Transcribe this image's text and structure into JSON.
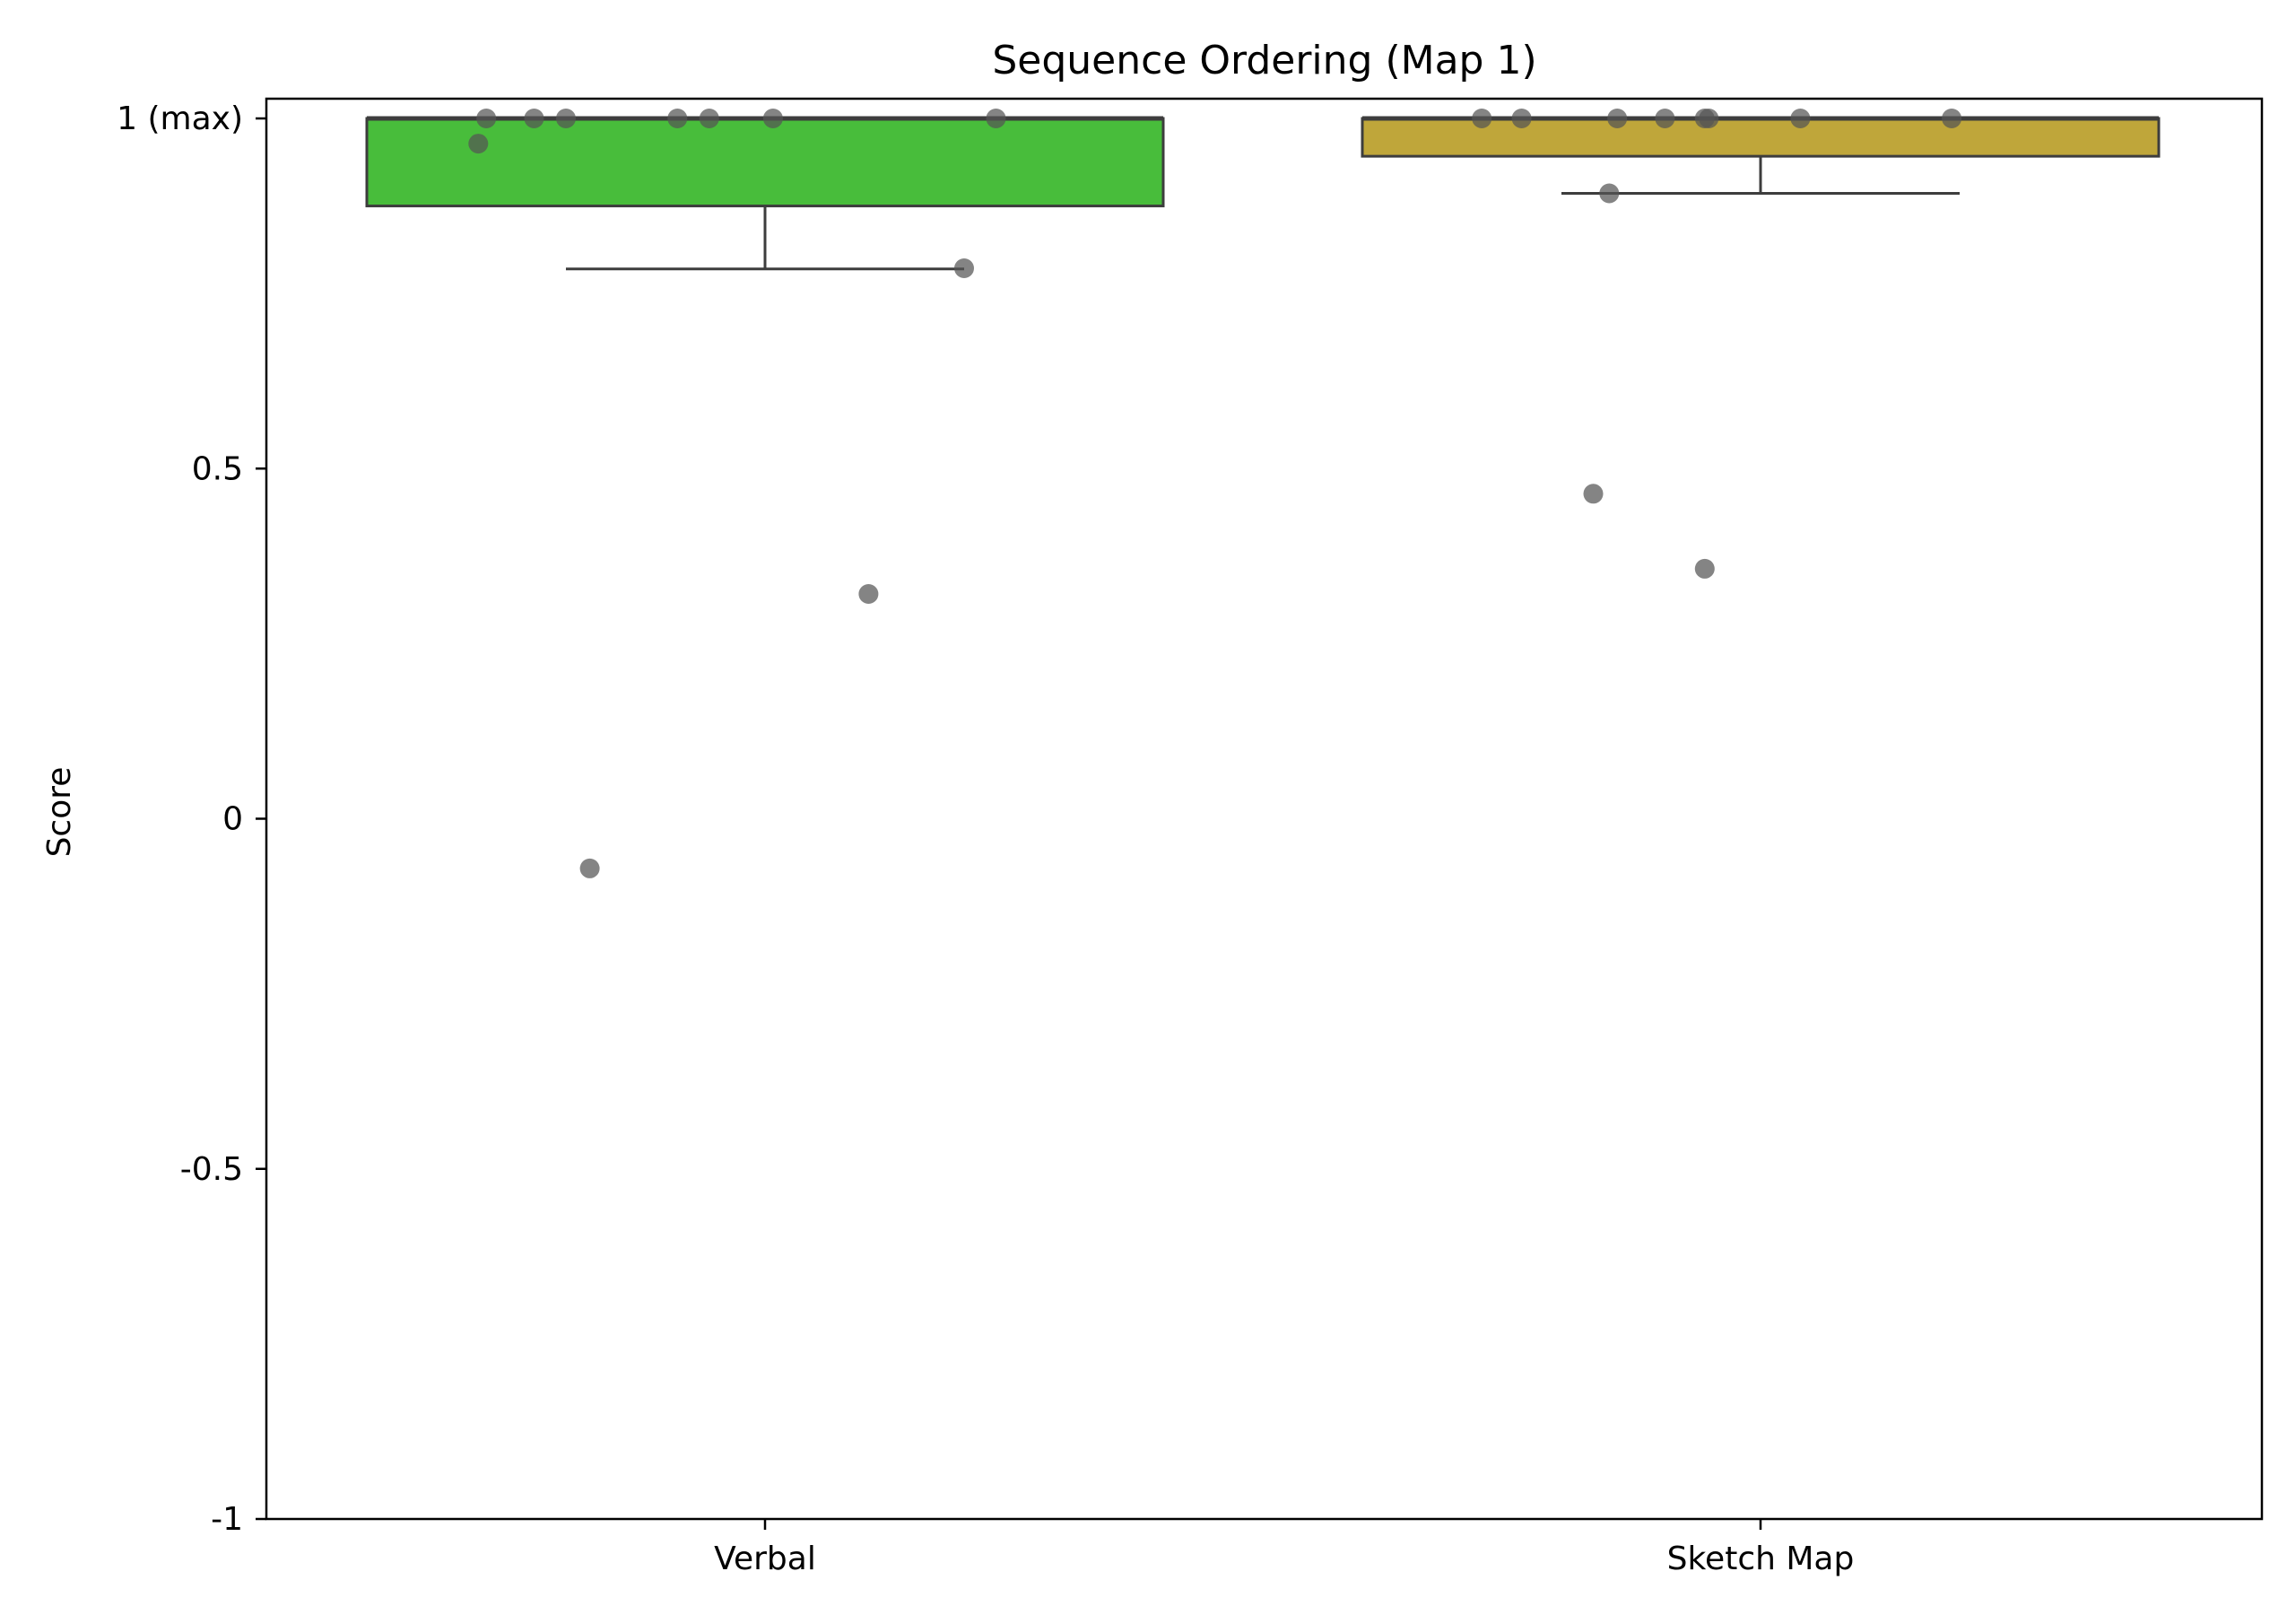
{
  "chart_data": {
    "type": "box",
    "title": "Sequence Ordering (Map 1)",
    "xlabel": "",
    "ylabel": "Score",
    "ylim": [
      -1,
      1.03
    ],
    "yticks": [
      {
        "value": 1,
        "label": "1 (max)"
      },
      {
        "value": 0.5,
        "label": "0.5"
      },
      {
        "value": 0,
        "label": "0"
      },
      {
        "value": -0.5,
        "label": "-0.5"
      },
      {
        "value": -1,
        "label": "-1"
      }
    ],
    "grid": false,
    "categories": [
      "Verbal",
      "Sketch Map"
    ],
    "boxes": [
      {
        "category": "Verbal",
        "color": "#48bd3b",
        "q1": 0.875,
        "median": 1.0,
        "q3": 1.0,
        "whisker_low": 0.785,
        "whisker_high": 1.0
      },
      {
        "category": "Sketch Map",
        "color": "#bfa63a",
        "q1": 0.946,
        "median": 1.0,
        "q3": 1.0,
        "whisker_low": 0.893,
        "whisker_high": 1.0
      }
    ],
    "points": [
      {
        "category": "Verbal",
        "jitter": -0.36,
        "y": 0.964
      },
      {
        "category": "Verbal",
        "jitter": -0.35,
        "y": 1.0
      },
      {
        "category": "Verbal",
        "jitter": -0.29,
        "y": 1.0
      },
      {
        "category": "Verbal",
        "jitter": -0.25,
        "y": 1.0
      },
      {
        "category": "Verbal",
        "jitter": -0.11,
        "y": 1.0
      },
      {
        "category": "Verbal",
        "jitter": -0.07,
        "y": 1.0
      },
      {
        "category": "Verbal",
        "jitter": 0.01,
        "y": 1.0
      },
      {
        "category": "Verbal",
        "jitter": 0.29,
        "y": 1.0
      },
      {
        "category": "Verbal",
        "jitter": 0.25,
        "y": 0.786
      },
      {
        "category": "Verbal",
        "jitter": 0.13,
        "y": 0.321
      },
      {
        "category": "Verbal",
        "jitter": -0.22,
        "y": -0.071
      },
      {
        "category": "Sketch Map",
        "jitter": -0.35,
        "y": 1.0
      },
      {
        "category": "Sketch Map",
        "jitter": -0.3,
        "y": 1.0
      },
      {
        "category": "Sketch Map",
        "jitter": -0.18,
        "y": 1.0
      },
      {
        "category": "Sketch Map",
        "jitter": -0.12,
        "y": 1.0
      },
      {
        "category": "Sketch Map",
        "jitter": -0.07,
        "y": 1.0
      },
      {
        "category": "Sketch Map",
        "jitter": -0.065,
        "y": 1.0
      },
      {
        "category": "Sketch Map",
        "jitter": 0.05,
        "y": 1.0
      },
      {
        "category": "Sketch Map",
        "jitter": 0.24,
        "y": 1.0
      },
      {
        "category": "Sketch Map",
        "jitter": -0.19,
        "y": 0.893
      },
      {
        "category": "Sketch Map",
        "jitter": -0.21,
        "y": 0.464
      },
      {
        "category": "Sketch Map",
        "jitter": -0.07,
        "y": 0.357
      }
    ],
    "point_color": "#555555"
  }
}
